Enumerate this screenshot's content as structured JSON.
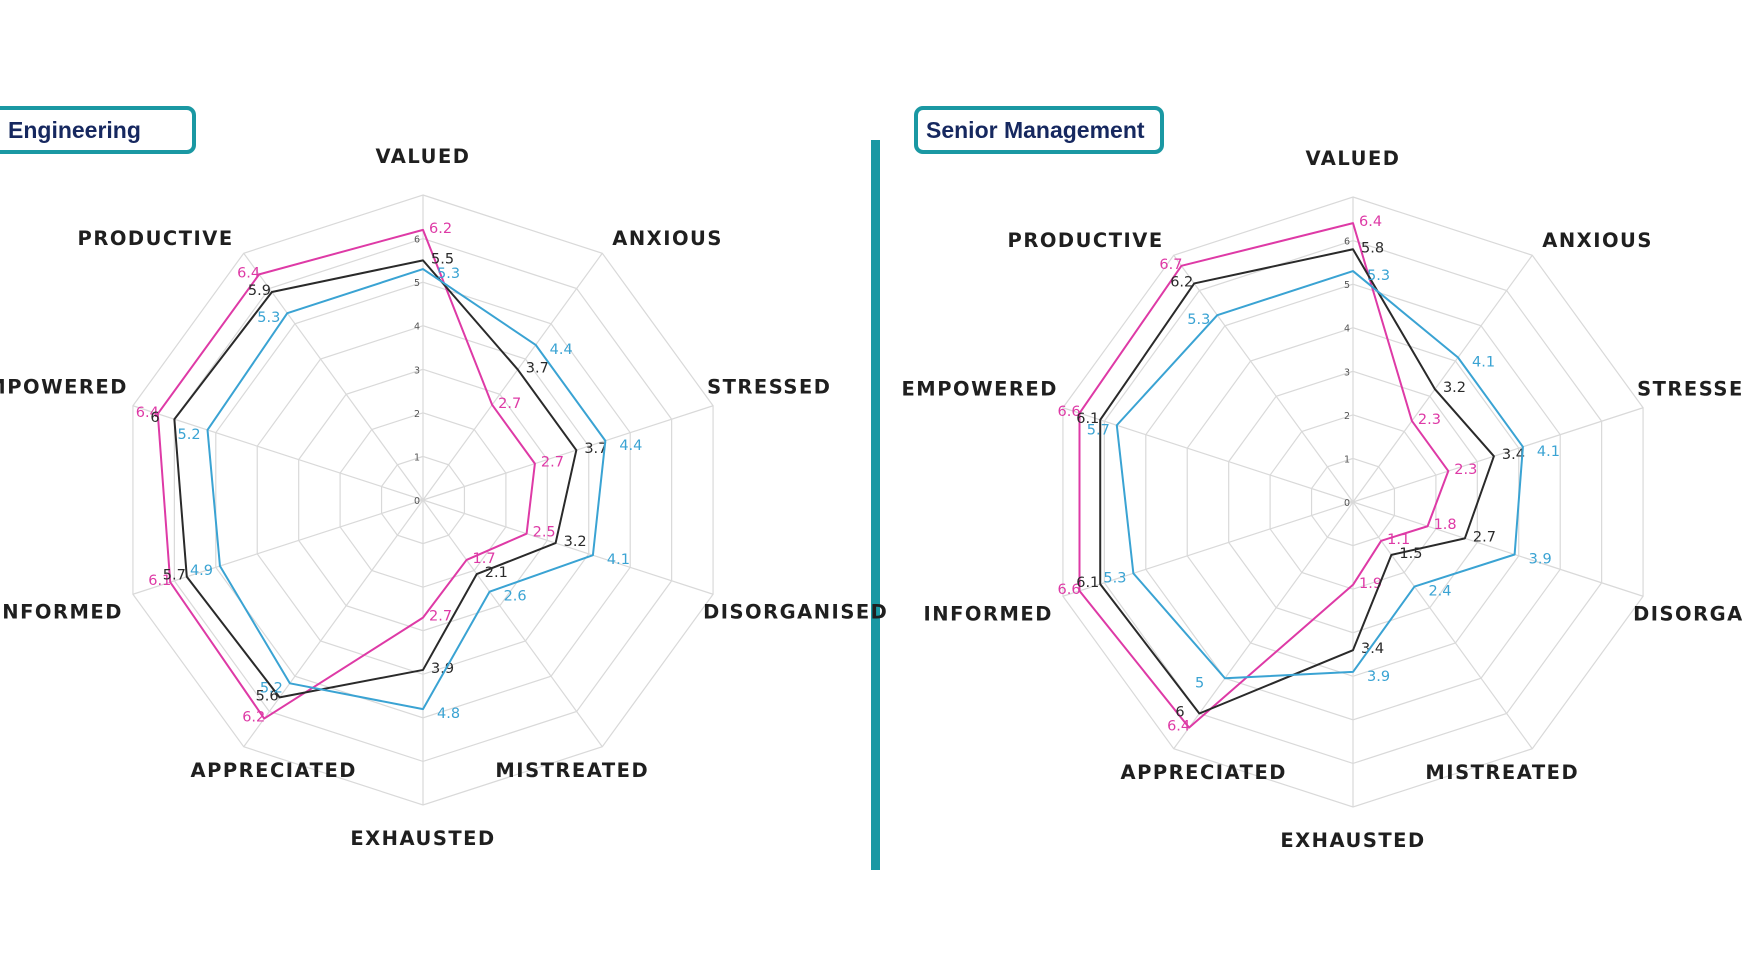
{
  "colors": {
    "magenta": "#de3aa6",
    "black": "#2a2a2a",
    "blue": "#3aa3d3",
    "accent": "#1a98a3",
    "title_text": "#16285f",
    "grid": "#d9d9d9"
  },
  "chart_data": [
    {
      "type": "radar",
      "title": "Engineering",
      "axes": [
        "VALUED",
        "ANXIOUS",
        "STRESSED",
        "DISORGANISED",
        "MISTREATED",
        "EXHAUSTED",
        "APPRECIATED",
        "INFORMED",
        "EMPOWERED",
        "PRODUCTIVE"
      ],
      "ticks": [
        "0",
        "1",
        "2",
        "3",
        "4",
        "5",
        "6"
      ],
      "rlim": [
        0,
        7
      ],
      "grid": true,
      "series": [
        {
          "color": "#de3aa6",
          "values": [
            6.2,
            2.7,
            2.7,
            2.5,
            1.7,
            2.7,
            6.2,
            6.1,
            6.4,
            6.4
          ]
        },
        {
          "color": "#2a2a2a",
          "values": [
            5.5,
            3.7,
            3.7,
            3.2,
            2.1,
            3.9,
            5.6,
            5.7,
            6,
            5.9
          ]
        },
        {
          "color": "#3aa3d3",
          "values": [
            5.3,
            4.4,
            4.4,
            4.1,
            2.6,
            4.8,
            5.2,
            4.9,
            5.2,
            5.3
          ]
        }
      ]
    },
    {
      "type": "radar",
      "title": "Senior Management",
      "axes": [
        "VALUED",
        "ANXIOUS",
        "STRESSED",
        "DISORGANISED",
        "MISTREATED",
        "EXHAUSTED",
        "APPRECIATED",
        "INFORMED",
        "EMPOWERED",
        "PRODUCTIVE"
      ],
      "ticks": [
        "0",
        "1",
        "2",
        "3",
        "4",
        "5",
        "6"
      ],
      "rlim": [
        0,
        7
      ],
      "grid": true,
      "series": [
        {
          "color": "#de3aa6",
          "values": [
            6.4,
            2.3,
            2.3,
            1.8,
            1.1,
            1.9,
            6.4,
            6.6,
            6.6,
            6.7
          ]
        },
        {
          "color": "#2a2a2a",
          "values": [
            5.8,
            3.2,
            3.4,
            2.7,
            1.5,
            3.4,
            6,
            6.1,
            6.1,
            6.2
          ]
        },
        {
          "color": "#3aa3d3",
          "values": [
            5.3,
            4.1,
            4.1,
            3.9,
            2.4,
            3.9,
            5,
            5.3,
            5.7,
            5.3
          ]
        }
      ]
    }
  ]
}
